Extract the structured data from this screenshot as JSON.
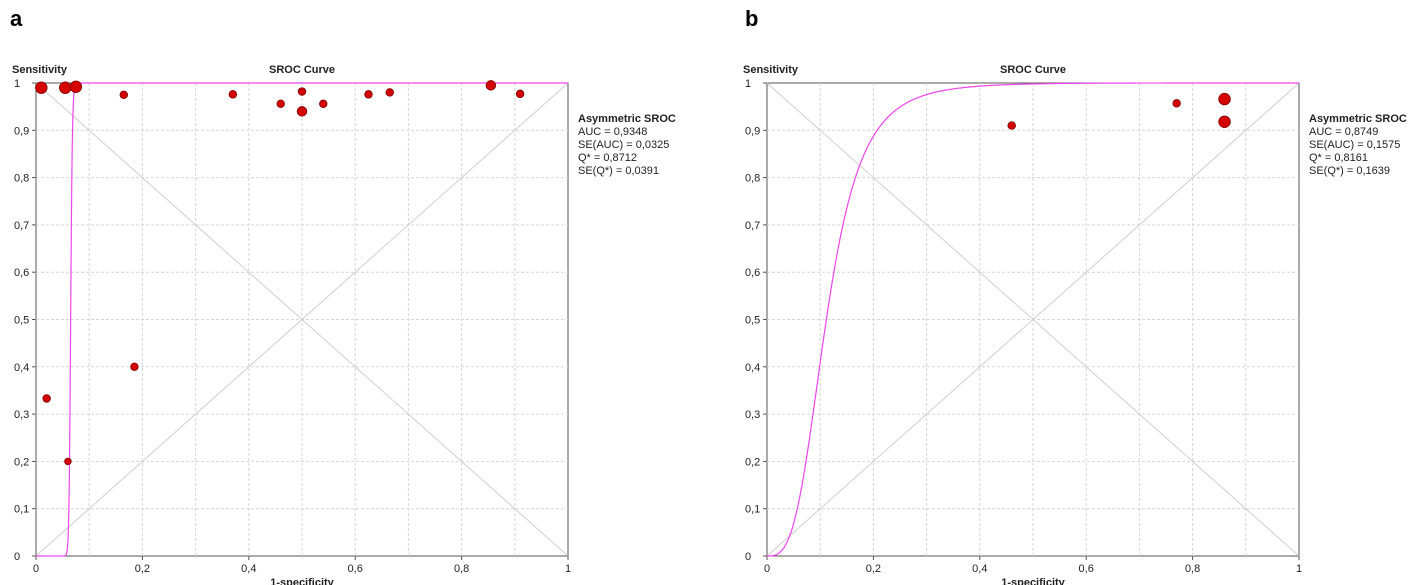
{
  "panels": [
    {
      "label": "a",
      "chart_data": {
        "type": "scatter",
        "title": "SROC Curve",
        "xlabel": "1-specificity",
        "ylabel": "Sensitivity",
        "xlim": [
          0,
          1
        ],
        "ylim": [
          0,
          1
        ],
        "xticks": [
          "0",
          "0,2",
          "0,4",
          "0,6",
          "0,8",
          "1"
        ],
        "yticks": [
          "0",
          "0,1",
          "0,2",
          "0,3",
          "0,4",
          "0,5",
          "0,6",
          "0,7",
          "0,8",
          "0,9",
          "1"
        ],
        "grid": true,
        "stats": {
          "heading": "Asymmetric SROC",
          "lines": [
            "AUC = 0,9348",
            "SE(AUC) = 0,0325",
            "Q* = 0,8712",
            "SE(Q*) = 0,0391"
          ]
        },
        "points": [
          {
            "x": 0.01,
            "y": 0.99,
            "size": "large"
          },
          {
            "x": 0.055,
            "y": 0.99,
            "size": "large"
          },
          {
            "x": 0.075,
            "y": 0.992,
            "size": "large"
          },
          {
            "x": 0.165,
            "y": 0.975,
            "size": "small"
          },
          {
            "x": 0.37,
            "y": 0.976,
            "size": "small"
          },
          {
            "x": 0.46,
            "y": 0.956,
            "size": "small"
          },
          {
            "x": 0.5,
            "y": 0.982,
            "size": "small"
          },
          {
            "x": 0.5,
            "y": 0.94,
            "size": "medium"
          },
          {
            "x": 0.54,
            "y": 0.956,
            "size": "small"
          },
          {
            "x": 0.625,
            "y": 0.976,
            "size": "small"
          },
          {
            "x": 0.665,
            "y": 0.98,
            "size": "small"
          },
          {
            "x": 0.855,
            "y": 0.995,
            "size": "medium"
          },
          {
            "x": 0.91,
            "y": 0.977,
            "size": "small"
          },
          {
            "x": 0.02,
            "y": 0.333,
            "size": "small"
          },
          {
            "x": 0.185,
            "y": 0.4,
            "size": "small"
          },
          {
            "x": 0.06,
            "y": 0.2,
            "size": "tiny"
          }
        ],
        "curve": {
          "auc": 0.9348,
          "b": 0.95
        }
      }
    },
    {
      "label": "b",
      "chart_data": {
        "type": "scatter",
        "title": "SROC Curve",
        "xlabel": "1-specificity",
        "ylabel": "Sensitivity",
        "xlim": [
          0,
          1
        ],
        "ylim": [
          0,
          1
        ],
        "xticks": [
          "0",
          "0,2",
          "0,4",
          "0,6",
          "0,8",
          "1"
        ],
        "yticks": [
          "0",
          "0,1",
          "0,2",
          "0,3",
          "0,4",
          "0,5",
          "0,6",
          "0,7",
          "0,8",
          "0,9",
          "1"
        ],
        "grid": true,
        "stats": {
          "heading": "Asymmetric SROC",
          "lines": [
            "AUC = 0,8749",
            "SE(AUC) = 0,1575",
            "Q* = 0,8161",
            "SE(Q*) = 0,1639"
          ]
        },
        "points": [
          {
            "x": 0.46,
            "y": 0.91,
            "size": "small"
          },
          {
            "x": 0.77,
            "y": 0.957,
            "size": "small"
          },
          {
            "x": 0.86,
            "y": 0.966,
            "size": "large"
          },
          {
            "x": 0.86,
            "y": 0.918,
            "size": "large"
          }
        ],
        "curve": {
          "auc": 0.8749,
          "b": 0.5
        }
      }
    }
  ]
}
